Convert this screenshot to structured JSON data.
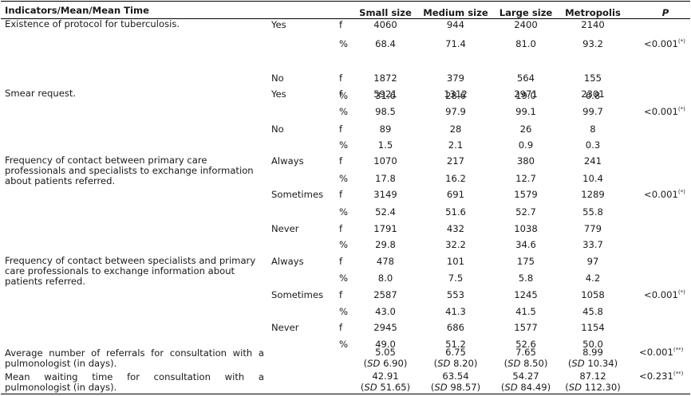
{
  "header": {
    "indicators": "Indicators/Mean/Mean Time",
    "small": "Small size",
    "medium": "Medium size",
    "large": "Large size",
    "metro": "Metropolis",
    "p": "P"
  },
  "sections": [
    {
      "indicator": "Existence of protocol for tuberculosis.",
      "groups": [
        {
          "label": "Yes",
          "rows": [
            {
              "unit": "f",
              "values": [
                "4060",
                "944",
                "2400",
                "2140"
              ],
              "p": ""
            },
            {
              "unit": "%",
              "values": [
                "68.4",
                "71.4",
                "81.0",
                "93.2"
              ],
              "p": "<0.001",
              "p_mark": "(*)"
            }
          ]
        },
        {
          "label": "No",
          "rows": [
            {
              "unit": "f",
              "values": [
                "1872",
                "379",
                "564",
                "155"
              ],
              "p": ""
            },
            {
              "unit": "%",
              "values": [
                "31.6",
                "28.6",
                "19.0",
                "6.8"
              ],
              "p": ""
            }
          ]
        }
      ]
    },
    {
      "indicator": "Smear request.",
      "groups": [
        {
          "label": "Yes",
          "rows": [
            {
              "unit": "f",
              "values": [
                "5921",
                "1312",
                "2971",
                "2301"
              ],
              "p": ""
            },
            {
              "unit": "%",
              "values": [
                "98.5",
                "97.9",
                "99.1",
                "99.7"
              ],
              "p": "<0.001",
              "p_mark": "(*)"
            }
          ]
        },
        {
          "label": "No",
          "rows": [
            {
              "unit": "f",
              "values": [
                "89",
                "28",
                "26",
                "8"
              ],
              "p": ""
            },
            {
              "unit": "%",
              "values": [
                "1.5",
                "2.1",
                "0.9",
                "0.3"
              ],
              "p": ""
            }
          ]
        }
      ]
    },
    {
      "indicator": "Frequency of contact between primary care professionals and specialists to exchange information about patients referred.",
      "groups": [
        {
          "label": "Always",
          "rows": [
            {
              "unit": "f",
              "values": [
                "1070",
                "217",
                "380",
                "241"
              ],
              "p": ""
            },
            {
              "unit": "%",
              "values": [
                "17.8",
                "16.2",
                "12.7",
                "10.4"
              ],
              "p": ""
            }
          ]
        },
        {
          "label": "Sometimes",
          "rows": [
            {
              "unit": "f",
              "values": [
                "3149",
                "691",
                "1579",
                "1289"
              ],
              "p": "<0.001",
              "p_mark": "(*)"
            },
            {
              "unit": "%",
              "values": [
                "52.4",
                "51.6",
                "52.7",
                "55.8"
              ],
              "p": ""
            }
          ]
        },
        {
          "label": "Never",
          "rows": [
            {
              "unit": "f",
              "values": [
                "1791",
                "432",
                "1038",
                "779"
              ],
              "p": ""
            },
            {
              "unit": "%",
              "values": [
                "29.8",
                "32.2",
                "34.6",
                "33.7"
              ],
              "p": ""
            }
          ]
        }
      ]
    },
    {
      "indicator": "Frequency of contact between specialists and primary care professionals to exchange information about patients referred.",
      "groups": [
        {
          "label": "Always",
          "rows": [
            {
              "unit": "f",
              "values": [
                "478",
                "101",
                "175",
                "97"
              ],
              "p": ""
            },
            {
              "unit": "%",
              "values": [
                "8.0",
                "7.5",
                "5.8",
                "4.2"
              ],
              "p": ""
            }
          ]
        },
        {
          "label": "Sometimes",
          "rows": [
            {
              "unit": "f",
              "values": [
                "2587",
                "553",
                "1245",
                "1058"
              ],
              "p": "<0.001",
              "p_mark": "(*)"
            },
            {
              "unit": "%",
              "values": [
                "43.0",
                "41.3",
                "41.5",
                "45.8"
              ],
              "p": ""
            }
          ]
        },
        {
          "label": "Never",
          "rows": [
            {
              "unit": "f",
              "values": [
                "2945",
                "686",
                "1577",
                "1154"
              ],
              "p": ""
            },
            {
              "unit": "%",
              "values": [
                "49.0",
                "51.2",
                "52.6",
                "50.0"
              ],
              "p": ""
            }
          ]
        }
      ]
    }
  ],
  "mean_rows": [
    {
      "line1": "Average number of referrals for consultation with a",
      "line2": "pulmonologist (in days).",
      "means": [
        "5.05",
        "6.75",
        "7.65",
        "8.99"
      ],
      "sds": [
        "6.90",
        "8.20",
        "8.50",
        "10.34"
      ],
      "p": "<0.001",
      "p_mark": "(**)"
    },
    {
      "line1": "Mean waiting time for consultation with a",
      "line2": "pulmonologist (in days).",
      "means": [
        "42.91",
        "63.54",
        "54.27",
        "87.12"
      ],
      "sds": [
        "51.65",
        "98.57",
        "84.49",
        "112.30"
      ],
      "p": "<0.231",
      "p_mark": "(**)"
    }
  ],
  "sd_label": "SD"
}
